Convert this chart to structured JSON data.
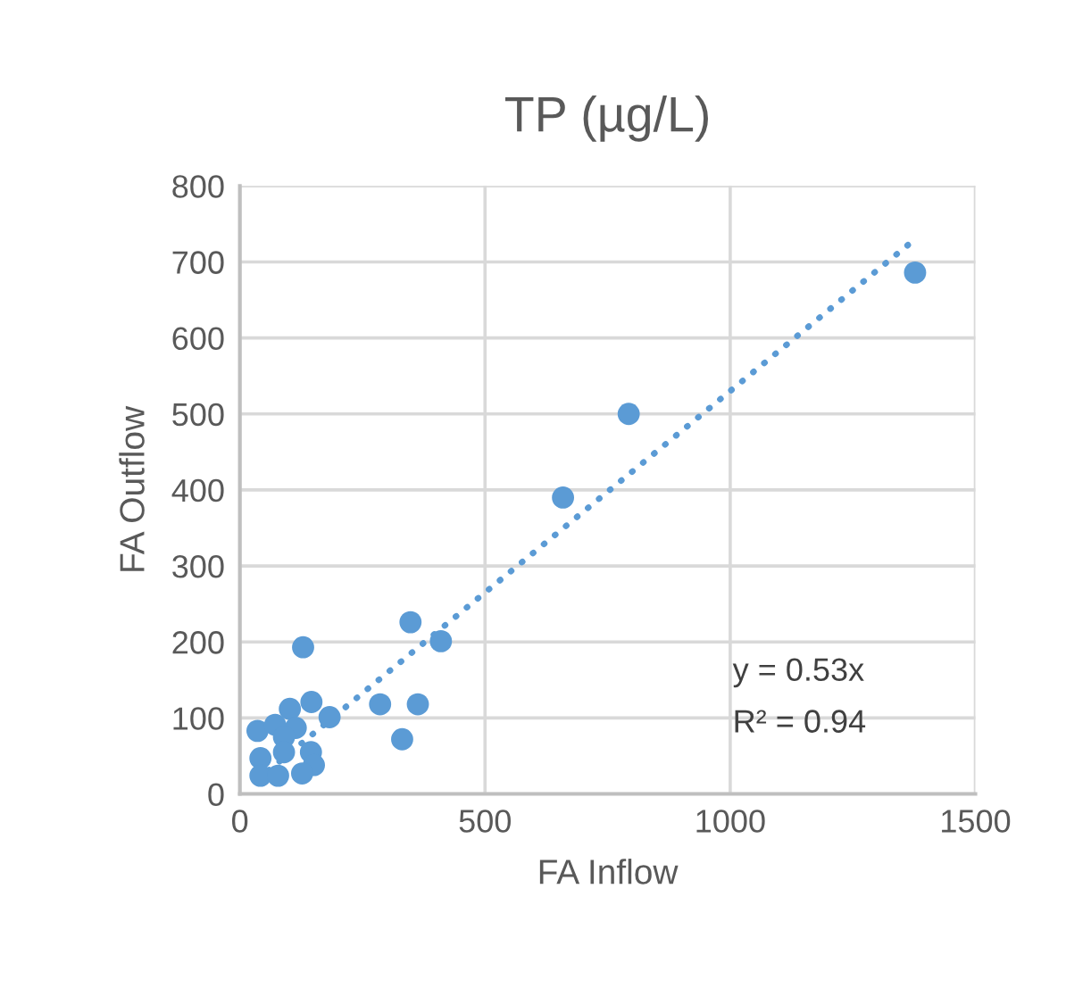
{
  "chart_data": {
    "type": "scatter",
    "title": "TP (µg/L)",
    "xlabel": "FA Inflow",
    "ylabel": "FA Outflow",
    "xlim": [
      0,
      1500
    ],
    "xticks": [
      0,
      500,
      1000,
      1500
    ],
    "ylim": [
      0,
      800
    ],
    "yticks": [
      0,
      100,
      200,
      300,
      400,
      500,
      600,
      700,
      800
    ],
    "grid": true,
    "legend": false,
    "series": [
      {
        "color": "#5b9bd5",
        "marker": "circle",
        "x": [
          1377,
          793,
          659,
          348,
          410,
          129,
          286,
          363,
          331,
          183,
          146,
          102,
          36,
          72,
          114,
          90,
          145,
          151,
          42,
          42,
          78,
          127,
          90
        ],
        "values": [
          686,
          500,
          390,
          226,
          201,
          193,
          118,
          118,
          72,
          101,
          121,
          112,
          83,
          91,
          87,
          75,
          55,
          38,
          47,
          24,
          24,
          27,
          55
        ]
      },
      {
        "type": "line",
        "color": "#5b9bd5",
        "line_style": "dotted",
        "marker": "none",
        "x": [
          36,
          1377
        ],
        "values": [
          19,
          730
        ]
      }
    ],
    "annotations": [
      "y = 0.53x",
      "R² = 0.94"
    ]
  }
}
